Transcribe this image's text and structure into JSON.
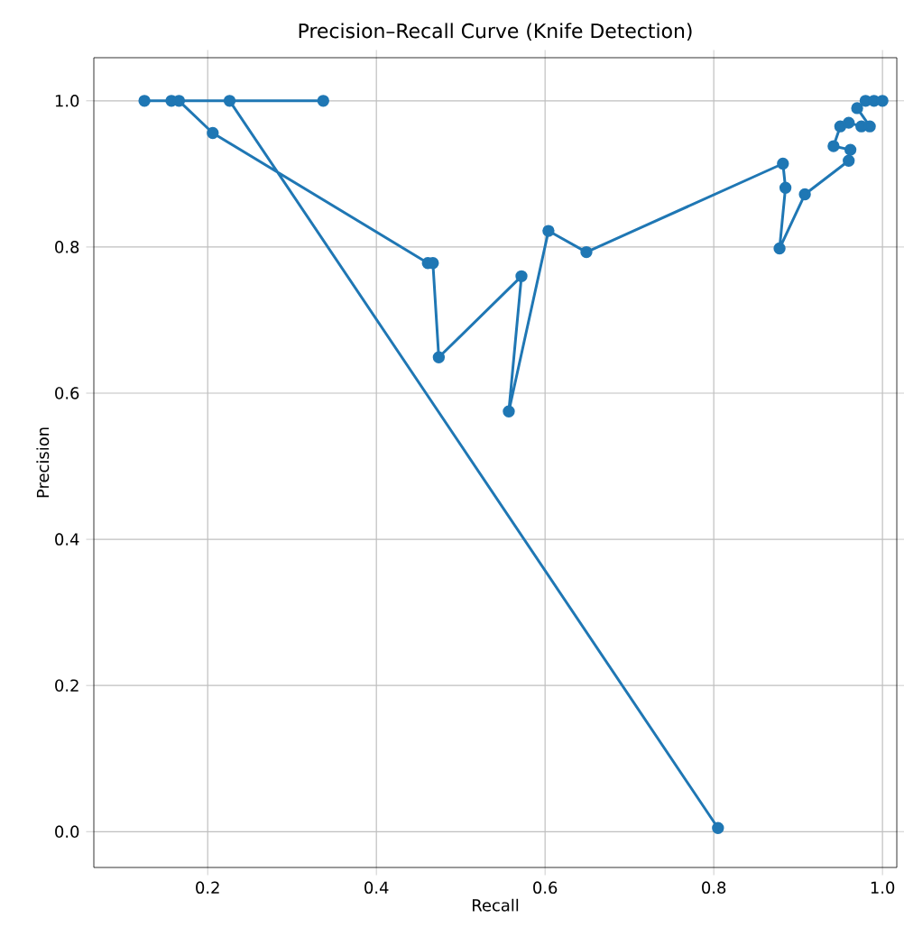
{
  "chart_data": {
    "type": "line",
    "title": "Precision–Recall Curve (Knife Detection)",
    "xlabel": "Recall",
    "ylabel": "Precision",
    "x": [
      0.805,
      0.226,
      0.337,
      0.125,
      0.157,
      0.166,
      0.206,
      0.461,
      0.467,
      0.474,
      0.572,
      0.557,
      0.604,
      0.649,
      0.882,
      0.885,
      0.878,
      0.908,
      0.96,
      0.962,
      0.942,
      0.95,
      0.96,
      0.975,
      0.985,
      0.97,
      0.98,
      0.99,
      1.0
    ],
    "series": [
      {
        "color": "#1f77b4",
        "values": [
          0.005,
          1.0,
          1.0,
          1.0,
          1.0,
          1.0,
          0.956,
          0.778,
          0.778,
          0.649,
          0.76,
          0.575,
          0.822,
          0.793,
          0.914,
          0.881,
          0.798,
          0.872,
          0.918,
          0.933,
          0.938,
          0.965,
          0.97,
          0.965,
          0.965,
          0.99,
          1.0,
          1.0,
          1.0
        ]
      }
    ],
    "xlim": [
      0.065,
      1.017
    ],
    "ylim": [
      -0.049,
      1.059
    ],
    "xticks": [
      {
        "value": 0.2,
        "label": "0.2"
      },
      {
        "value": 0.4,
        "label": "0.4"
      },
      {
        "value": 0.6,
        "label": "0.6"
      },
      {
        "value": 0.8,
        "label": "0.8"
      },
      {
        "value": 1.0,
        "label": "1.0"
      }
    ],
    "yticks": [
      {
        "value": 0.0,
        "label": "0.0"
      },
      {
        "value": 0.2,
        "label": "0.2"
      },
      {
        "value": 0.4,
        "label": "0.4"
      },
      {
        "value": 0.6,
        "label": "0.6"
      },
      {
        "value": 0.8,
        "label": "0.8"
      },
      {
        "value": 1.0,
        "label": "1.0"
      }
    ],
    "grid": true,
    "marker": "circle",
    "line_style": "solid"
  }
}
